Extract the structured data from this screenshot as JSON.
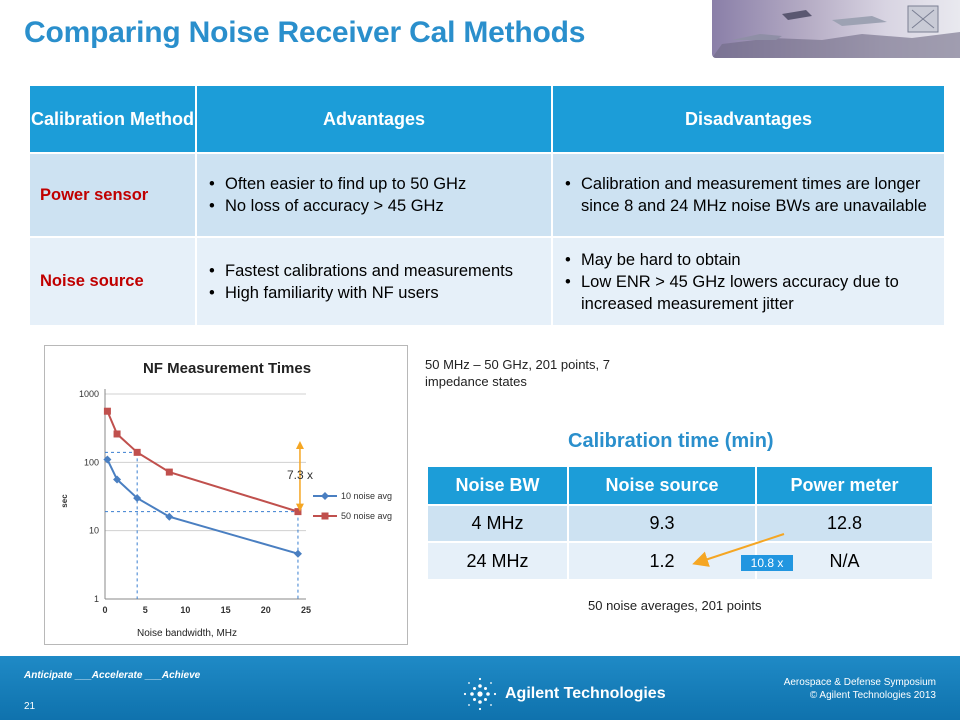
{
  "title": "Comparing Noise Receiver Cal Methods",
  "main_table": {
    "headers": [
      "Calibration Method",
      "Advantages",
      "Disadvantages"
    ],
    "rows": [
      {
        "method": "Power sensor",
        "advantages": [
          "Often easier to find up to 50 GHz",
          "No loss of accuracy > 45 GHz"
        ],
        "disadvantages": [
          "Calibration and measurement times are longer since 8 and 24 MHz noise BWs are unavailable"
        ]
      },
      {
        "method": "Noise source",
        "advantages": [
          "Fastest calibrations and measurements",
          "High familiarity with NF users"
        ],
        "disadvantages": [
          "May be hard to obtain",
          "Low ENR > 45 GHz lowers accuracy due to increased measurement jitter"
        ]
      }
    ]
  },
  "chart_data": {
    "type": "line",
    "title": "NF Measurement Times",
    "xlabel": "Noise bandwidth, MHz",
    "ylabel": "sec",
    "xlim": [
      0,
      25
    ],
    "ylim": [
      1,
      1000
    ],
    "yscale": "log",
    "x_ticks": [
      "0",
      "5",
      "10",
      "15",
      "20",
      "25"
    ],
    "y_ticks": [
      "1",
      "10",
      "100",
      "1000"
    ],
    "legend_position": "right",
    "grid": "horizontal",
    "series": [
      {
        "name": "10 noise avg",
        "color": "#4a7fc1",
        "x": [
          0.3,
          1.5,
          4,
          8,
          24
        ],
        "y": [
          110,
          56,
          30,
          16,
          4.6
        ]
      },
      {
        "name": "50 noise avg",
        "color": "#c0504d",
        "x": [
          0.3,
          1.5,
          4,
          8,
          24
        ],
        "y": [
          560,
          260,
          140,
          72,
          19
        ]
      }
    ],
    "annotation": "7.3 x",
    "annotation_color": "#f5a623",
    "dashed_guides_x": [
      4,
      24
    ]
  },
  "note_sweep": "50 MHz – 50 GHz, 201 points, 7 impedance states",
  "calib_title": "Calibration time (min)",
  "bw_table": {
    "headers": [
      "Noise BW",
      "Noise source",
      "Power meter"
    ],
    "rows": [
      [
        "4 MHz",
        "9.3",
        "12.8"
      ],
      [
        "24 MHz",
        "1.2",
        "N/A"
      ]
    ]
  },
  "ratio_label": "10.8 x",
  "note_avg": "50 noise averages, 201 points",
  "footer": {
    "tagline": "Anticipate ___Accelerate ___Achieve",
    "slide_number": "21",
    "company": "Agilent Technologies",
    "event": "Aerospace & Defense Symposium",
    "copyright": "© Agilent Technologies 2013"
  },
  "colors": {
    "accent": "#2a8fcc",
    "header_blue": "#1c9dd8",
    "method_red": "#c00000",
    "footer_blue": "#1581bf"
  }
}
